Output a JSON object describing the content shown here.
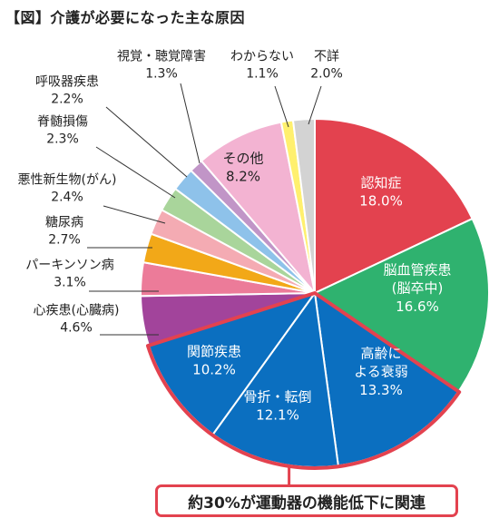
{
  "chart_data": {
    "type": "pie",
    "title": "【図】介護が必要になった主な原因",
    "start_angle_deg": 0,
    "direction": "clockwise",
    "slices": [
      {
        "label": "認知症",
        "value": 18.0,
        "value_label": "18.0%",
        "color": "#e3424f"
      },
      {
        "label": "脳血管疾患\n(脳卒中)",
        "value": 16.6,
        "value_label": "16.6%",
        "color": "#2fb26f"
      },
      {
        "label": "高齢に\nよる衰弱",
        "value": 13.3,
        "value_label": "13.3%",
        "color": "#0b6fc0"
      },
      {
        "label": "骨折・転倒",
        "value": 12.1,
        "value_label": "12.1%",
        "color": "#0b6fc0"
      },
      {
        "label": "関節疾患",
        "value": 10.2,
        "value_label": "10.2%",
        "color": "#0b6fc0"
      },
      {
        "label": "心疾患(心臓病)",
        "value": 4.6,
        "value_label": "4.6%",
        "color": "#a2449b"
      },
      {
        "label": "パーキンソン病",
        "value": 3.1,
        "value_label": "3.1%",
        "color": "#ec7b99"
      },
      {
        "label": "糖尿病",
        "value": 2.7,
        "value_label": "2.7%",
        "color": "#f2a818"
      },
      {
        "label": "悪性新生物(がん)",
        "value": 2.4,
        "value_label": "2.4%",
        "color": "#f4abb3"
      },
      {
        "label": "脊髄損傷",
        "value": 2.3,
        "value_label": "2.3%",
        "color": "#a9d59b"
      },
      {
        "label": "呼吸器疾患",
        "value": 2.2,
        "value_label": "2.2%",
        "color": "#8ec2ea"
      },
      {
        "label": "視覚・聴覚障害",
        "value": 1.3,
        "value_label": "1.3%",
        "color": "#c195c7"
      },
      {
        "label": "その他",
        "value": 8.2,
        "value_label": "8.2%",
        "color": "#f3b3d2"
      },
      {
        "label": "わからない",
        "value": 1.1,
        "value_label": "1.1%",
        "color": "#fff06e"
      },
      {
        "label": "不詳",
        "value": 2.0,
        "value_label": "2.0%",
        "color": "#d3d3d3"
      }
    ],
    "highlight_group": [
      "高齢に\nよる衰弱",
      "骨折・転倒",
      "関節疾患"
    ],
    "highlight_color": "#e3424f",
    "callout_text": "約30%が運動器の機能低下に関連"
  }
}
